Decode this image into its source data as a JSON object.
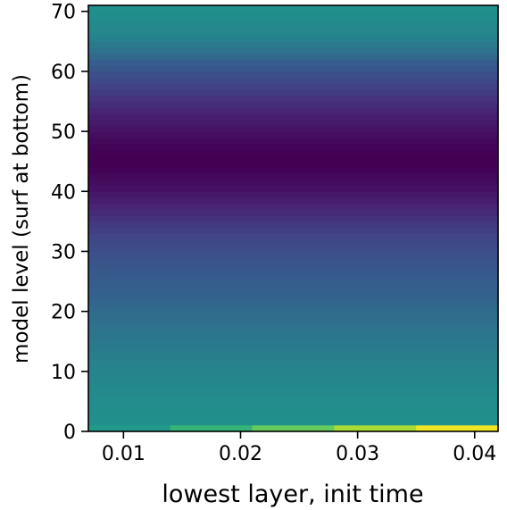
{
  "chart_data": {
    "type": "heatmap",
    "colormap": "viridis",
    "xlabel": "lowest layer, init time",
    "ylabel": "model level (surf at bottom)",
    "xlim": [
      0.007,
      0.042
    ],
    "ylim": [
      0,
      71
    ],
    "x_ticks": [
      0.01,
      0.02,
      0.03,
      0.04
    ],
    "x_tick_labels": [
      "0.01",
      "0.02",
      "0.03",
      "0.04"
    ],
    "y_ticks": [
      0,
      10,
      20,
      30,
      40,
      50,
      60,
      70
    ],
    "y_tick_labels": [
      "0",
      "10",
      "20",
      "30",
      "40",
      "50",
      "60",
      "70"
    ],
    "grid": false,
    "x_bins": [
      0.007,
      0.014,
      0.021,
      0.028,
      0.035,
      0.042
    ],
    "level_profile": {
      "levels": [
        1,
        5,
        10,
        15,
        20,
        25,
        28,
        32,
        36,
        40,
        44,
        46,
        48,
        52,
        56,
        60,
        63,
        66,
        69,
        71
      ],
      "colormap_fraction": [
        0.5,
        0.49,
        0.47,
        0.44,
        0.41,
        0.37,
        0.33,
        0.27,
        0.17,
        0.07,
        0.0,
        0.0,
        0.02,
        0.1,
        0.2,
        0.32,
        0.42,
        0.47,
        0.49,
        0.5
      ]
    },
    "bottom_layer": {
      "level_range": [
        0,
        1
      ],
      "colormap_fraction": [
        0.55,
        0.67,
        0.76,
        0.86,
        0.98
      ]
    }
  }
}
